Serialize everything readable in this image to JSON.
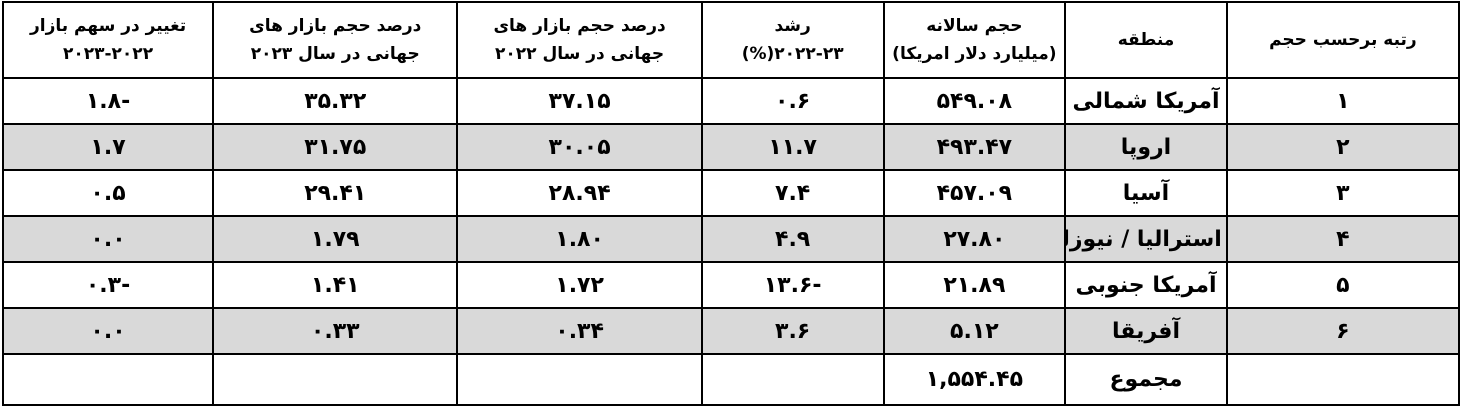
{
  "headers": {
    "rank": "رتبه برحسب حجم",
    "region": "منطقه",
    "volume_line1": "حجم سالانه",
    "volume_line2": "(میلیارد دلار امریکا)",
    "growth_line1": "رشد",
    "growth_line2": "۲۰۲۲-۲۳(%)",
    "share2022_line1": "درصد حجم بازار های",
    "share2022_line2": "جهانی در سال ۲۰۲۲",
    "share2023_line1": "درصد حجم بازار های",
    "share2023_line2": "جهانی در سال ۲۰۲۳",
    "change_line1": "تغییر در سهم بازار",
    "change_line2": "۲۰۲۳-۲۰۲۲"
  },
  "rows": [
    {
      "rank": "۱",
      "region": "آمریکا شمالی",
      "volume": "۵۴۹.۰۸",
      "growth": "۰.۶",
      "share2022": "۳۷.۱۵",
      "share2023": "۳۵.۳۲",
      "change": "-۱.۸"
    },
    {
      "rank": "۲",
      "region": "اروپا",
      "volume": "۴۹۳.۴۷",
      "growth": "۱۱.۷",
      "share2022": "۳۰.۰۵",
      "share2023": "۳۱.۷۵",
      "change": "۱.۷"
    },
    {
      "rank": "۳",
      "region": "آسیا",
      "volume": "۴۵۷.۰۹",
      "growth": "۷.۴",
      "share2022": "۲۸.۹۴",
      "share2023": "۲۹.۴۱",
      "change": "۰.۵"
    },
    {
      "rank": "۴",
      "region": "استرالیا / نیوزلند",
      "volume": "۲۷.۸۰",
      "growth": "۴.۹",
      "share2022": "۱.۸۰",
      "share2023": "۱.۷۹",
      "change": "۰.۰"
    },
    {
      "rank": "۵",
      "region": "آمریکا جنوبی",
      "volume": "۲۱.۸۹",
      "growth": "-۱۳.۶",
      "share2022": "۱.۷۲",
      "share2023": "۱.۴۱",
      "change": "-۰.۳"
    },
    {
      "rank": "۶",
      "region": "آفریقا",
      "volume": "۵.۱۲",
      "growth": "۳.۶",
      "share2022": "۰.۳۴",
      "share2023": "۰.۳۳",
      "change": "۰.۰"
    }
  ],
  "total": {
    "label": "مجموع",
    "volume": "۱,۵۵۴.۴۵"
  }
}
